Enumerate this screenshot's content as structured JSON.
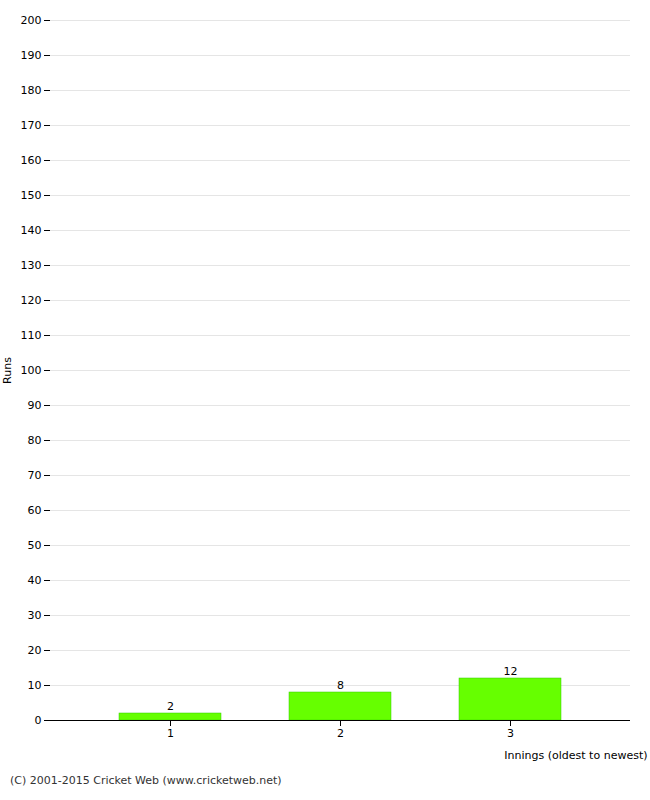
{
  "chart_data": {
    "type": "bar",
    "xlabel": "Innings (oldest to newest)",
    "ylabel": "Runs",
    "categories": [
      "1",
      "2",
      "3"
    ],
    "values": [
      2,
      8,
      12
    ],
    "color": "#66ff00",
    "ylim": [
      0,
      200
    ],
    "yticks": [
      0,
      10,
      20,
      30,
      40,
      50,
      60,
      70,
      80,
      90,
      100,
      110,
      120,
      130,
      140,
      150,
      160,
      170,
      180,
      190,
      200
    ],
    "grid": true,
    "data_labels": true,
    "caption": "(C) 2001-2015 Cricket Web (www.cricketweb.net)"
  }
}
